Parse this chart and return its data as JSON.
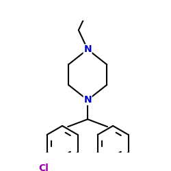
{
  "bg_color": "#ffffff",
  "bond_color": "#000000",
  "N_color": "#0000cc",
  "OH_color": "#cc0000",
  "Cl_color": "#9900aa",
  "bond_lw": 1.5,
  "figsize": [
    2.5,
    2.5
  ],
  "dpi": 100,
  "xlim": [
    -1.3,
    1.3
  ],
  "ylim": [
    -1.45,
    1.15
  ]
}
